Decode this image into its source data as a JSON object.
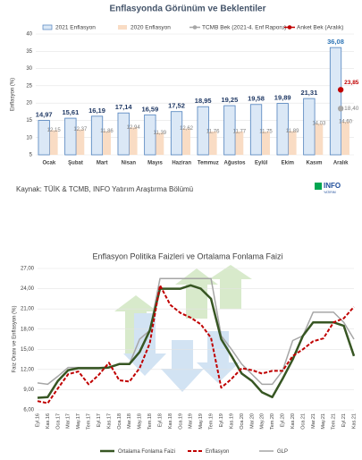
{
  "chart_data": [
    {
      "type": "bar",
      "title": "Enflasyonda Görünüm ve Beklentiler",
      "ylabel": "Enflasyon (%)",
      "categories": [
        "Ocak",
        "Şubat",
        "Mart",
        "Nisan",
        "Mayıs",
        "Haziran",
        "Temmuz",
        "Ağustos",
        "Eylül",
        "Ekim",
        "Kasım",
        "Aralık"
      ],
      "series": [
        {
          "name": "2021 Enflasyon",
          "color": "#dbe8f6",
          "values": [
            14.97,
            15.61,
            16.19,
            17.14,
            16.59,
            17.52,
            18.95,
            19.25,
            19.58,
            19.89,
            21.31,
            36.08
          ],
          "value_labels": [
            "14,97",
            "15,61",
            "16,19",
            "17,14",
            "16,59",
            "17,52",
            "18,95",
            "19,25",
            "19,58",
            "19,89",
            "21,31",
            "36,08"
          ]
        },
        {
          "name": "2020 Enflasyon",
          "color": "#f9dcc4",
          "values": [
            12.15,
            12.37,
            11.86,
            12.94,
            11.39,
            12.62,
            11.76,
            11.77,
            11.75,
            11.89,
            14.03,
            14.6
          ],
          "value_labels": [
            "12,15",
            "12,37",
            "11,86",
            "12,94",
            "11,39",
            "12,62",
            "11,76",
            "11,77",
            "11,75",
            "11,89",
            "14,03",
            "14,60"
          ]
        },
        {
          "name": "TCMB Bek (2021-4. Enf Raporu)",
          "color": "#a6a6a6",
          "values": [
            null,
            null,
            null,
            null,
            null,
            null,
            null,
            null,
            null,
            null,
            null,
            18.4
          ],
          "value_labels": [
            null,
            null,
            null,
            null,
            null,
            null,
            null,
            null,
            null,
            null,
            null,
            "18,40"
          ]
        },
        {
          "name": "Anket Bek (Aralık)",
          "color": "#c00000",
          "values": [
            null,
            null,
            null,
            null,
            null,
            null,
            null,
            null,
            null,
            null,
            null,
            23.85
          ],
          "value_labels": [
            null,
            null,
            null,
            null,
            null,
            null,
            null,
            null,
            null,
            null,
            null,
            "23,85"
          ]
        }
      ],
      "ylim": [
        5,
        40
      ],
      "yticks": [
        5,
        10,
        15,
        20,
        25,
        30,
        35,
        40
      ],
      "grid": true,
      "source": "Kaynak: TÜİK & TCMB,  INFO Yatırım Araştırma Bölümü",
      "logo": "INFO",
      "logo_sub": "YATIRIM"
    },
    {
      "type": "line",
      "title": "Enflasyon Politika Faizleri ve Ortalama Fonlama Faizi",
      "ylabel": "Faiz Oranı ve Enflasyon (%)",
      "categories": [
        "Eyl.16",
        "Kas.16",
        "Oca.17",
        "Mar.17",
        "May.17",
        "Tem.17",
        "Eyl.17",
        "Kas.17",
        "Oca.18",
        "Mar.18",
        "May.18",
        "Tem.18",
        "Eyl.18",
        "Kas.18",
        "Oca.19",
        "Mar.19",
        "May.19",
        "Tem.19",
        "Eyl.19",
        "Kas.19",
        "Oca.20",
        "Mar.20",
        "May.20",
        "Tem.20",
        "Eyl.20",
        "Kas.20",
        "Oca.21",
        "Mar.21",
        "May.21",
        "Tem.21",
        "Eyl.21",
        "Kas.21"
      ],
      "series": [
        {
          "name": "Ortalama Fonlama Faizi",
          "color": "#375623",
          "style": "solid",
          "values": [
            7.8,
            7.9,
            10.3,
            11.9,
            12.2,
            12.2,
            12.2,
            12.3,
            12.8,
            12.8,
            14.6,
            17.8,
            24.0,
            24.0,
            24.0,
            24.5,
            24.0,
            22.5,
            16.5,
            14.0,
            11.4,
            10.3,
            8.6,
            7.9,
            10.6,
            13.5,
            17.0,
            19.0,
            19.0,
            19.0,
            18.5,
            14.0
          ]
        },
        {
          "name": "Enflasyon",
          "color": "#c00000",
          "style": "dashed",
          "values": [
            7.3,
            7.0,
            9.2,
            11.3,
            11.7,
            9.8,
            11.2,
            13.0,
            10.4,
            10.2,
            12.2,
            15.9,
            24.5,
            21.6,
            20.4,
            19.7,
            18.7,
            16.7,
            9.3,
            10.6,
            12.2,
            11.9,
            11.4,
            11.8,
            11.8,
            14.0,
            15.0,
            16.2,
            16.6,
            19.0,
            19.6,
            21.3
          ]
        },
        {
          "name": "GLP",
          "color": "#a6a6a6",
          "style": "solid",
          "values": [
            10.0,
            9.8,
            11.0,
            12.3,
            12.3,
            12.3,
            12.3,
            12.3,
            12.8,
            12.8,
            16.5,
            17.8,
            25.5,
            25.5,
            25.5,
            25.5,
            25.5,
            25.5,
            17.0,
            15.0,
            12.8,
            11.3,
            9.8,
            9.8,
            11.8,
            16.3,
            17.0,
            20.5,
            20.5,
            20.5,
            19.0,
            16.5
          ]
        }
      ],
      "ylim": [
        6,
        27
      ],
      "yticks": [
        {
          "value": 6,
          "label": "6,00"
        },
        {
          "value": 9,
          "label": "9,00"
        },
        {
          "value": 12,
          "label": "12,00"
        },
        {
          "value": 15,
          "label": "15,00"
        },
        {
          "value": 18,
          "label": "18,00"
        },
        {
          "value": 21,
          "label": "21,00"
        },
        {
          "value": 24,
          "label": "24,00"
        },
        {
          "value": 27,
          "label": "27,00"
        }
      ],
      "grid": true
    }
  ]
}
